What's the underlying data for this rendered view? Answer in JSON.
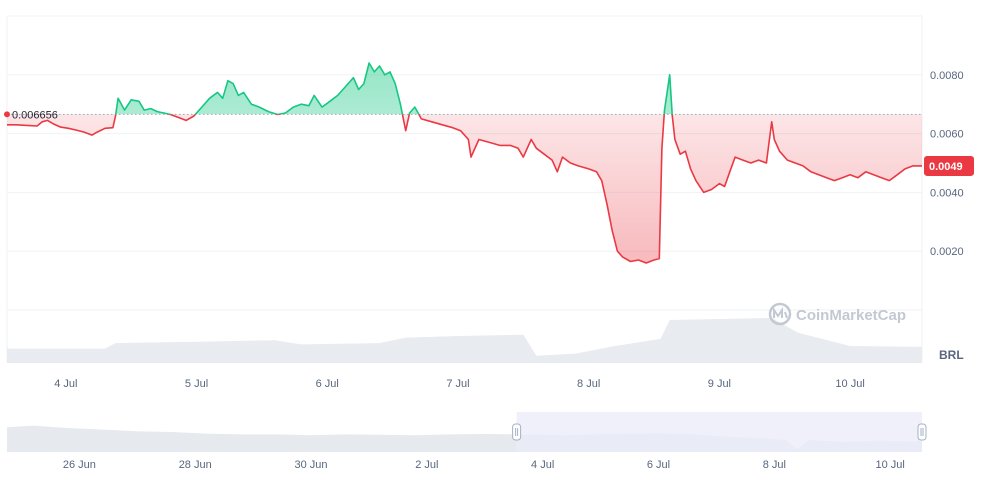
{
  "chart_data": {
    "type": "area",
    "currency": "BRL",
    "reference_price": 0.006656,
    "reference_label": "0.006656",
    "current_price_label": "0.0049",
    "current_price": 0.0049,
    "ylim": [
      0,
      0.01
    ],
    "y_ticks": [
      {
        "value": 0.008,
        "label": "0.0080"
      },
      {
        "value": 0.006,
        "label": "0.0060"
      },
      {
        "value": 0.004,
        "label": "0.0040"
      },
      {
        "value": 0.002,
        "label": "0.0020"
      }
    ],
    "x_ticks": [
      {
        "day": 4,
        "label": "4 Jul"
      },
      {
        "day": 5,
        "label": "5 Jul"
      },
      {
        "day": 6,
        "label": "6 Jul"
      },
      {
        "day": 7,
        "label": "7 Jul"
      },
      {
        "day": 8,
        "label": "8 Jul"
      },
      {
        "day": 9,
        "label": "9 Jul"
      },
      {
        "day": 10,
        "label": "10 Jul"
      }
    ],
    "x_range": [
      3.55,
      10.55
    ],
    "series": [
      {
        "points": [
          [
            3.55,
            0.0063
          ],
          [
            3.62,
            0.0063
          ],
          [
            3.7,
            0.00628
          ],
          [
            3.78,
            0.00626
          ],
          [
            3.82,
            0.0064
          ],
          [
            3.86,
            0.00645
          ],
          [
            3.9,
            0.00634
          ],
          [
            3.96,
            0.00622
          ],
          [
            4.02,
            0.00618
          ],
          [
            4.08,
            0.00612
          ],
          [
            4.14,
            0.00605
          ],
          [
            4.2,
            0.00595
          ],
          [
            4.24,
            0.00605
          ],
          [
            4.3,
            0.00618
          ],
          [
            4.36,
            0.0062
          ],
          [
            4.38,
            0.0066
          ],
          [
            4.4,
            0.0072
          ],
          [
            4.45,
            0.0068
          ],
          [
            4.5,
            0.00715
          ],
          [
            4.56,
            0.0071
          ],
          [
            4.6,
            0.0068
          ],
          [
            4.65,
            0.00685
          ],
          [
            4.7,
            0.00675
          ],
          [
            4.75,
            0.0067
          ],
          [
            4.8,
            0.00665
          ],
          [
            4.86,
            0.00655
          ],
          [
            4.92,
            0.00645
          ],
          [
            4.98,
            0.0066
          ],
          [
            5.04,
            0.0069
          ],
          [
            5.1,
            0.0072
          ],
          [
            5.16,
            0.0074
          ],
          [
            5.2,
            0.0072
          ],
          [
            5.24,
            0.0078
          ],
          [
            5.28,
            0.0077
          ],
          [
            5.32,
            0.0073
          ],
          [
            5.36,
            0.0074
          ],
          [
            5.42,
            0.007
          ],
          [
            5.48,
            0.0069
          ],
          [
            5.55,
            0.00675
          ],
          [
            5.62,
            0.00665
          ],
          [
            5.68,
            0.0067
          ],
          [
            5.74,
            0.0069
          ],
          [
            5.8,
            0.007
          ],
          [
            5.86,
            0.00695
          ],
          [
            5.9,
            0.0073
          ],
          [
            5.96,
            0.0069
          ],
          [
            6.02,
            0.0071
          ],
          [
            6.08,
            0.0073
          ],
          [
            6.14,
            0.0076
          ],
          [
            6.2,
            0.0079
          ],
          [
            6.24,
            0.0075
          ],
          [
            6.28,
            0.0077
          ],
          [
            6.32,
            0.0084
          ],
          [
            6.36,
            0.0081
          ],
          [
            6.4,
            0.0083
          ],
          [
            6.44,
            0.008
          ],
          [
            6.48,
            0.0081
          ],
          [
            6.52,
            0.0077
          ],
          [
            6.56,
            0.007
          ],
          [
            6.6,
            0.0061
          ],
          [
            6.63,
            0.0067
          ],
          [
            6.67,
            0.0069
          ],
          [
            6.72,
            0.0065
          ],
          [
            6.8,
            0.0064
          ],
          [
            6.88,
            0.0063
          ],
          [
            6.96,
            0.0062
          ],
          [
            7.02,
            0.0061
          ],
          [
            7.08,
            0.0058
          ],
          [
            7.1,
            0.0052
          ],
          [
            7.16,
            0.0058
          ],
          [
            7.24,
            0.0057
          ],
          [
            7.32,
            0.0056
          ],
          [
            7.4,
            0.0056
          ],
          [
            7.46,
            0.0055
          ],
          [
            7.5,
            0.0052
          ],
          [
            7.56,
            0.0058
          ],
          [
            7.6,
            0.0055
          ],
          [
            7.66,
            0.0053
          ],
          [
            7.72,
            0.0051
          ],
          [
            7.76,
            0.0047
          ],
          [
            7.8,
            0.0052
          ],
          [
            7.86,
            0.005
          ],
          [
            7.92,
            0.0049
          ],
          [
            8.0,
            0.0048
          ],
          [
            8.06,
            0.0047
          ],
          [
            8.1,
            0.0044
          ],
          [
            8.14,
            0.0036
          ],
          [
            8.18,
            0.0027
          ],
          [
            8.22,
            0.002
          ],
          [
            8.26,
            0.0018
          ],
          [
            8.32,
            0.00165
          ],
          [
            8.38,
            0.0017
          ],
          [
            8.44,
            0.0016
          ],
          [
            8.5,
            0.0017
          ],
          [
            8.54,
            0.00175
          ],
          [
            8.56,
            0.0055
          ],
          [
            8.58,
            0.0068
          ],
          [
            8.62,
            0.008
          ],
          [
            8.64,
            0.0066
          ],
          [
            8.66,
            0.0058
          ],
          [
            8.7,
            0.0053
          ],
          [
            8.74,
            0.0054
          ],
          [
            8.78,
            0.0048
          ],
          [
            8.82,
            0.0044
          ],
          [
            8.88,
            0.004
          ],
          [
            8.94,
            0.0041
          ],
          [
            9.0,
            0.0043
          ],
          [
            9.04,
            0.0042
          ],
          [
            9.08,
            0.0047
          ],
          [
            9.12,
            0.0052
          ],
          [
            9.18,
            0.0051
          ],
          [
            9.24,
            0.005
          ],
          [
            9.3,
            0.0051
          ],
          [
            9.36,
            0.005
          ],
          [
            9.4,
            0.0064
          ],
          [
            9.42,
            0.0058
          ],
          [
            9.46,
            0.0054
          ],
          [
            9.52,
            0.0051
          ],
          [
            9.58,
            0.005
          ],
          [
            9.64,
            0.0049
          ],
          [
            9.7,
            0.0047
          ],
          [
            9.76,
            0.0046
          ],
          [
            9.82,
            0.0045
          ],
          [
            9.88,
            0.0044
          ],
          [
            9.94,
            0.0045
          ],
          [
            10.0,
            0.0046
          ],
          [
            10.06,
            0.0045
          ],
          [
            10.12,
            0.0047
          ],
          [
            10.18,
            0.0046
          ],
          [
            10.24,
            0.0045
          ],
          [
            10.3,
            0.0044
          ],
          [
            10.36,
            0.0046
          ],
          [
            10.42,
            0.0048
          ],
          [
            10.48,
            0.0049
          ],
          [
            10.55,
            0.0049
          ]
        ]
      }
    ],
    "volume": [
      [
        3.55,
        0.32
      ],
      [
        4.3,
        0.32
      ],
      [
        4.38,
        0.45
      ],
      [
        5.0,
        0.48
      ],
      [
        5.6,
        0.52
      ],
      [
        5.8,
        0.42
      ],
      [
        6.4,
        0.45
      ],
      [
        6.6,
        0.58
      ],
      [
        7.0,
        0.62
      ],
      [
        7.5,
        0.65
      ],
      [
        7.6,
        0.15
      ],
      [
        7.9,
        0.2
      ],
      [
        8.2,
        0.38
      ],
      [
        8.55,
        0.55
      ],
      [
        8.62,
        1.0
      ],
      [
        9.4,
        1.05
      ],
      [
        9.6,
        0.7
      ],
      [
        10.0,
        0.38
      ],
      [
        10.55,
        0.36
      ]
    ],
    "navigator": {
      "x_ticks": [
        {
          "day": -4,
          "label": "26 Jun"
        },
        {
          "day": -2,
          "label": "28 Jun"
        },
        {
          "day": 0,
          "label": "30 Jun"
        },
        {
          "day": 2,
          "label": "2 Jul"
        },
        {
          "day": 4,
          "label": "4 Jul"
        },
        {
          "day": 6,
          "label": "6 Jul"
        },
        {
          "day": 8,
          "label": "8 Jul"
        },
        {
          "day": 10,
          "label": "10 Jul"
        }
      ],
      "x_range": [
        -5.25,
        10.55
      ],
      "selection": [
        3.55,
        10.55
      ],
      "values": [
        [
          -5.25,
          0.62
        ],
        [
          -4.8,
          0.66
        ],
        [
          -4.2,
          0.6
        ],
        [
          -3.6,
          0.56
        ],
        [
          -3.0,
          0.52
        ],
        [
          -2.4,
          0.5
        ],
        [
          -1.8,
          0.46
        ],
        [
          -1.2,
          0.44
        ],
        [
          -0.6,
          0.44
        ],
        [
          0,
          0.42
        ],
        [
          0.6,
          0.44
        ],
        [
          1.2,
          0.43
        ],
        [
          1.8,
          0.42
        ],
        [
          2.4,
          0.44
        ],
        [
          3.0,
          0.45
        ],
        [
          3.6,
          0.44
        ],
        [
          4.4,
          0.42
        ],
        [
          5.2,
          0.45
        ],
        [
          6.0,
          0.47
        ],
        [
          6.6,
          0.44
        ],
        [
          7.2,
          0.38
        ],
        [
          7.8,
          0.34
        ],
        [
          8.2,
          0.3
        ],
        [
          8.4,
          0.06
        ],
        [
          8.6,
          0.3
        ],
        [
          9.2,
          0.26
        ],
        [
          9.8,
          0.28
        ],
        [
          10.55,
          0.27
        ]
      ]
    },
    "watermark": "CoinMarketCap",
    "colors": {
      "up": "#16c784",
      "down": "#ea3943",
      "up_fill": "#16c784",
      "down_fill": "#ea3943",
      "grid": "#eff2f5",
      "volume": "#e8ebef",
      "navigator_fill": "#e6e9ee",
      "selection": "#e9ebf8"
    }
  }
}
